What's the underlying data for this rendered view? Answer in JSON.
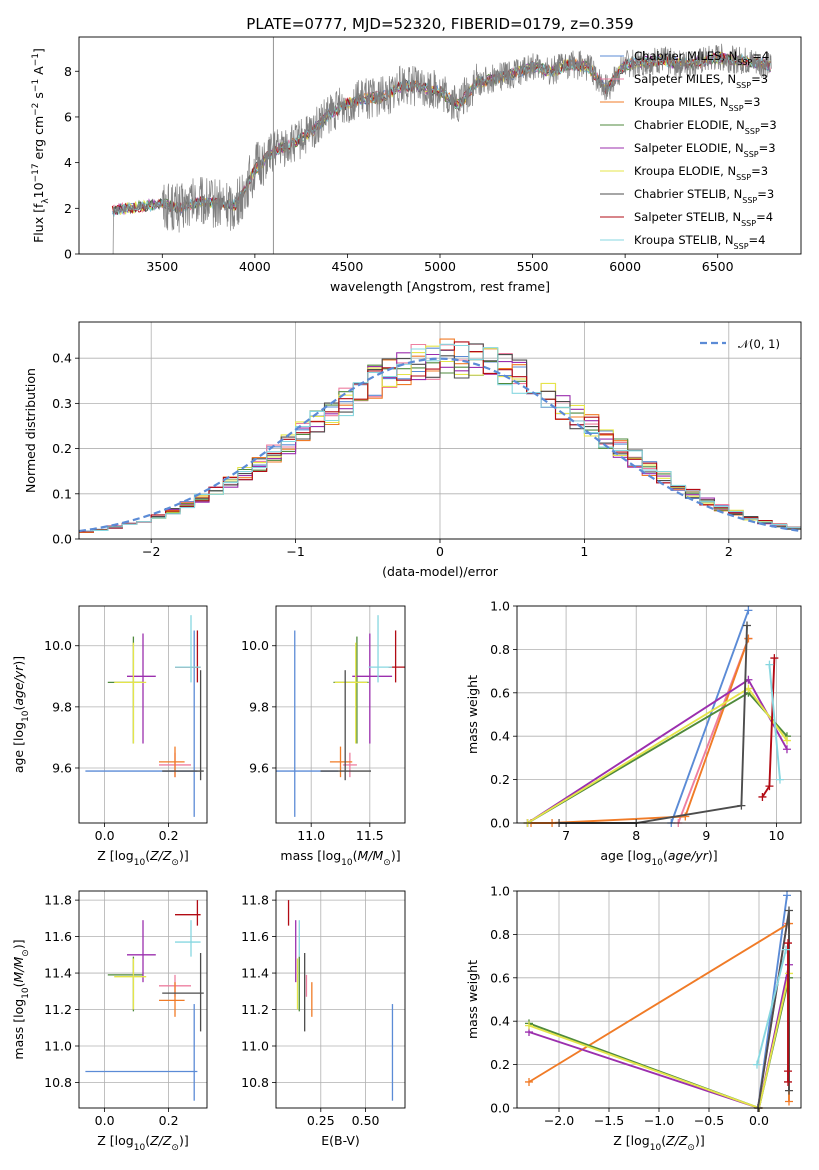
{
  "title": "PLATE=0777, MJD=52320, FIBERID=0179, z=0.359",
  "colors": {
    "chab_miles": "#5b8bd6",
    "salp_miles": "#ee7fa0",
    "krou_miles": "#f07b27",
    "chab_elodie": "#4f8a3c",
    "salp_elodie": "#9b2fae",
    "krou_elodie": "#e5e54a",
    "chab_stelib": "#4d4d4d",
    "salp_stelib": "#b20b14",
    "krou_stelib": "#87d7e0",
    "spectrum": "#7f7f7f",
    "grid": "#b0b0b0"
  },
  "chart_data": [
    {
      "type": "line",
      "name": "spectrum",
      "xlabel": "wavelength [Angstrom, rest frame]",
      "ylabel": "Flux [f_λ 10^-17 erg cm^-2 s^-1 A^-1]",
      "xlim": [
        3050,
        6950
      ],
      "ylim": [
        0,
        9.5
      ],
      "xticks": [
        3500,
        4000,
        4500,
        5000,
        5500,
        6000,
        6500
      ],
      "yticks": [
        0,
        2,
        4,
        6,
        8
      ],
      "vline": 4100,
      "continuum": {
        "x": [
          3230,
          3300,
          3400,
          3500,
          3600,
          3700,
          3800,
          3900,
          4000,
          4100,
          4200,
          4300,
          4400,
          4500,
          4600,
          4700,
          4800,
          4900,
          5000,
          5100,
          5200,
          5300,
          5400,
          5500,
          5600,
          5700,
          5800,
          5900,
          6000,
          6100,
          6200,
          6300,
          6400,
          6500,
          6600,
          6700,
          6790
        ],
        "y": [
          1.9,
          2.0,
          2.1,
          2.2,
          2.0,
          2.3,
          2.2,
          2.1,
          3.7,
          4.5,
          4.8,
          5.3,
          6.1,
          6.6,
          6.8,
          6.9,
          7.4,
          7.3,
          7.1,
          6.5,
          7.5,
          7.7,
          7.9,
          8.2,
          8.0,
          8.3,
          8.2,
          7.2,
          8.3,
          8.4,
          8.5,
          8.3,
          8.4,
          8.6,
          8.5,
          8.4,
          8.2
        ]
      },
      "legend": [
        {
          "label": "Chabrier MILES, N",
          "sub": "SSP",
          "tail": "=4",
          "color": "chab_miles"
        },
        {
          "label": "Salpeter MILES, N",
          "sub": "SSP",
          "tail": "=3",
          "color": "salp_miles"
        },
        {
          "label": "Kroupa MILES, N",
          "sub": "SSP",
          "tail": "=3",
          "color": "krou_miles"
        },
        {
          "label": "Chabrier ELODIE, N",
          "sub": "SSP",
          "tail": "=3",
          "color": "chab_elodie"
        },
        {
          "label": "Salpeter ELODIE, N",
          "sub": "SSP",
          "tail": "=3",
          "color": "salp_elodie"
        },
        {
          "label": "Kroupa ELODIE, N",
          "sub": "SSP",
          "tail": "=3",
          "color": "krou_elodie"
        },
        {
          "label": "Chabrier STELIB, N",
          "sub": "SSP",
          "tail": "=3",
          "color": "chab_stelib"
        },
        {
          "label": "Salpeter STELIB, N",
          "sub": "SSP",
          "tail": "=4",
          "color": "salp_stelib"
        },
        {
          "label": "Kroupa STELIB, N",
          "sub": "SSP",
          "tail": "=4",
          "color": "krou_stelib"
        }
      ]
    },
    {
      "type": "histogram",
      "name": "residuals",
      "xlabel": "(data-model)/error",
      "ylabel": "Normed distribution",
      "xlim": [
        -2.5,
        2.5
      ],
      "ylim": [
        0,
        0.48
      ],
      "xticks": [
        -2,
        -1,
        0,
        1,
        2
      ],
      "yticks": [
        0.0,
        0.1,
        0.2,
        0.3,
        0.4
      ],
      "bin_width": 0.1,
      "gauss_label": "𝒩(0, 1)"
    },
    {
      "type": "scatter",
      "name": "Z-age",
      "xlabel": "Z [log10(Z/Z☉)]",
      "ylabel": "age [log10(age/yr)]",
      "xlim": [
        -0.08,
        0.32
      ],
      "ylim": [
        9.42,
        10.13
      ],
      "xticks": [
        0.0,
        0.2
      ],
      "yticks": [
        9.6,
        9.8,
        10.0
      ]
    },
    {
      "type": "scatter",
      "name": "mass-age",
      "xlabel": "mass [log10(M/M☉)]",
      "xlim": [
        10.7,
        11.8
      ],
      "ylim": [
        9.42,
        10.13
      ],
      "xticks": [
        11.0,
        11.5
      ],
      "yticks": [
        9.6,
        9.8,
        10.0
      ]
    },
    {
      "type": "line",
      "name": "age-weight",
      "xlabel": "age [log10(age/yr)]",
      "ylabel": "mass weight",
      "xlim": [
        6.3,
        10.35
      ],
      "ylim": [
        0,
        1.0
      ],
      "xticks": [
        7,
        8,
        9,
        10
      ],
      "yticks": [
        0.0,
        0.2,
        0.4,
        0.6,
        0.8,
        1.0
      ]
    },
    {
      "type": "scatter",
      "name": "Z-mass",
      "xlabel": "Z [log10(Z/Z☉)]",
      "ylabel": "mass [log10(M/M☉)]",
      "xlim": [
        -0.08,
        0.32
      ],
      "ylim": [
        10.66,
        11.85
      ],
      "xticks": [
        0.0,
        0.2
      ],
      "yticks": [
        10.8,
        11.0,
        11.2,
        11.4,
        11.6,
        11.8
      ]
    },
    {
      "type": "scatter",
      "name": "EBV-mass",
      "xlabel": "E(B-V)",
      "xlim": [
        0.0,
        0.72
      ],
      "ylim": [
        10.66,
        11.85
      ],
      "xticks": [
        0.25,
        0.5
      ],
      "yticks": [
        10.8,
        11.0,
        11.2,
        11.4,
        11.6,
        11.8
      ]
    },
    {
      "type": "line",
      "name": "Z-weight",
      "xlabel": "Z [log10(Z/Z☉)]",
      "ylabel": "mass weight",
      "xlim": [
        -2.42,
        0.42
      ],
      "ylim": [
        0,
        1.0
      ],
      "xticks": [
        -2.0,
        -1.5,
        -1.0,
        -0.5,
        0.0
      ],
      "yticks": [
        0.0,
        0.2,
        0.4,
        0.6,
        0.8,
        1.0
      ]
    }
  ],
  "models": [
    {
      "key": "chab_miles",
      "Z": 0.28,
      "Zerr": [
        0.34,
        0.01
      ],
      "age": 9.59,
      "ageErr": [
        0.15,
        0.46
      ],
      "mass": 10.86,
      "massErr": [
        0.16,
        0.37
      ],
      "ebv": 0.65,
      "ebvErr": 0.18,
      "ageW": [
        [
          8.5,
          0.0
        ],
        [
          9.6,
          0.98
        ]
      ],
      "ZW": [
        [
          -0.01,
          0.0
        ],
        [
          0.28,
          0.98
        ]
      ]
    },
    {
      "key": "salp_miles",
      "Z": 0.22,
      "Zerr": [
        0.05,
        0.05
      ],
      "age": 9.61,
      "ageErr": [
        0.04,
        0.04
      ],
      "mass": 11.33,
      "massErr": [
        0.06,
        0.06
      ],
      "ebv": 0.17,
      "ebvErr": 0.1,
      "ageW": [
        [
          8.6,
          0.0
        ],
        [
          9.6,
          0.85
        ]
      ],
      "ZW": [
        [
          -0.01,
          0.0
        ],
        [
          0.28,
          0.85
        ]
      ]
    },
    {
      "key": "krou_miles",
      "Z": 0.22,
      "Zerr": [
        0.05,
        0.03
      ],
      "age": 9.62,
      "ageErr": [
        0.05,
        0.05
      ],
      "mass": 11.25,
      "massErr": [
        0.09,
        0.1
      ],
      "ebv": 0.2,
      "ebvErr": 0.14,
      "ageW": [
        [
          6.5,
          0.0
        ],
        [
          6.8,
          0.0
        ],
        [
          8.7,
          0.03
        ],
        [
          9.6,
          0.85
        ]
      ],
      "ZW": [
        [
          -2.3,
          0.12
        ],
        [
          0.3,
          0.85
        ],
        [
          0.3,
          0.03
        ]
      ]
    },
    {
      "key": "chab_elodie",
      "Z": 0.09,
      "Zerr": [
        0.08,
        0.03
      ],
      "age": 9.88,
      "ageErr": [
        0.2,
        0.15
      ],
      "mass": 11.39,
      "massErr": [
        0.2,
        0.1
      ],
      "ebv": 0.13,
      "ebvErr": 0.09,
      "ageW": [
        [
          6.45,
          0.0
        ],
        [
          9.6,
          0.6
        ],
        [
          10.15,
          0.4
        ]
      ],
      "ZW": [
        [
          -2.3,
          0.39
        ],
        [
          0.0,
          0.0
        ],
        [
          0.3,
          0.6
        ]
      ]
    },
    {
      "key": "salp_elodie",
      "Z": 0.12,
      "Zerr": [
        0.05,
        0.04
      ],
      "age": 9.9,
      "ageErr": [
        0.22,
        0.14
      ],
      "mass": 11.5,
      "massErr": [
        0.15,
        0.19
      ],
      "ebv": 0.11,
      "ebvErr": 0.09,
      "ageW": [
        [
          6.45,
          0.0
        ],
        [
          9.6,
          0.66
        ],
        [
          10.15,
          0.34
        ]
      ],
      "ZW": [
        [
          -2.3,
          0.35
        ],
        [
          0.0,
          0.0
        ],
        [
          0.3,
          0.66
        ]
      ]
    },
    {
      "key": "krou_elodie",
      "Z": 0.09,
      "Zerr": [
        0.06,
        0.04
      ],
      "age": 9.88,
      "ageErr": [
        0.2,
        0.13
      ],
      "mass": 11.38,
      "massErr": [
        0.18,
        0.1
      ],
      "ebv": 0.12,
      "ebvErr": 0.08,
      "ageW": [
        [
          6.45,
          0.0
        ],
        [
          9.6,
          0.62
        ],
        [
          10.15,
          0.38
        ]
      ],
      "ZW": [
        [
          -2.3,
          0.38
        ],
        [
          0.0,
          0.0
        ],
        [
          0.3,
          0.62
        ]
      ]
    },
    {
      "key": "chab_stelib",
      "Z": 0.3,
      "Zerr": [
        0.12,
        0.01
      ],
      "age": 9.59,
      "ageErr": [
        0.03,
        0.33
      ],
      "mass": 11.29,
      "massErr": [
        0.21,
        0.22
      ],
      "ebv": 0.16,
      "ebvErr": 0.12,
      "ageW": [
        [
          6.9,
          0.0
        ],
        [
          8.0,
          0.0
        ],
        [
          9.5,
          0.08
        ],
        [
          9.58,
          0.91
        ]
      ],
      "ZW": [
        [
          -0.01,
          0.0
        ],
        [
          0.3,
          0.91
        ],
        [
          0.3,
          0.08
        ]
      ]
    },
    {
      "key": "salp_stelib",
      "Z": 0.29,
      "Zerr": [
        0.07,
        0.01
      ],
      "age": 9.93,
      "ageErr": [
        0.05,
        0.12
      ],
      "mass": 11.72,
      "massErr": [
        0.06,
        0.08
      ],
      "ebv": 0.07,
      "ebvErr": 0.08,
      "ageW": [
        [
          9.8,
          0.12
        ],
        [
          9.9,
          0.17
        ],
        [
          9.97,
          0.76
        ]
      ],
      "ZW": [
        [
          0.29,
          0.76
        ],
        [
          0.29,
          0.17
        ],
        [
          0.29,
          0.12
        ]
      ]
    },
    {
      "key": "krou_stelib",
      "Z": 0.27,
      "Zerr": [
        0.05,
        0.03
      ],
      "age": 9.93,
      "ageErr": [
        0.05,
        0.17
      ],
      "mass": 11.57,
      "massErr": [
        0.08,
        0.12
      ],
      "ebv": 0.13,
      "ebvErr": 0.12,
      "ageW": [
        [
          9.9,
          0.73
        ],
        [
          10.05,
          0.2
        ]
      ],
      "ZW": [
        [
          -0.02,
          0.2
        ],
        [
          0.27,
          0.73
        ]
      ]
    }
  ]
}
